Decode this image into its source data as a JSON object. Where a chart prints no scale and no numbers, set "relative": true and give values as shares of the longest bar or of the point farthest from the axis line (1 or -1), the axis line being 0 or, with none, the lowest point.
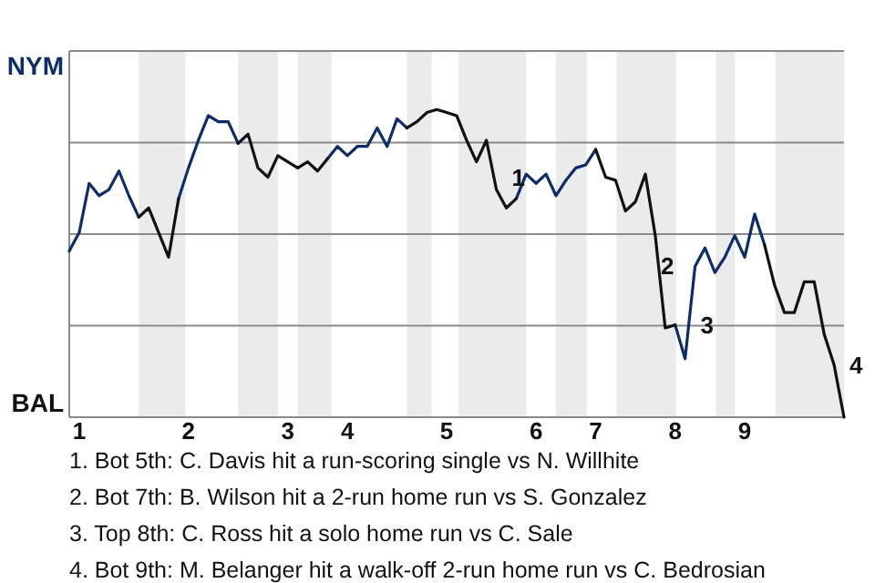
{
  "chart_data": {
    "type": "line",
    "relative": true,
    "categories": [
      null,
      "1",
      null,
      null,
      null,
      null,
      null,
      null,
      null,
      null,
      null,
      null,
      "2",
      null,
      null,
      null,
      null,
      null,
      null,
      null,
      null,
      null,
      "3",
      null,
      null,
      null,
      null,
      null,
      "4",
      null,
      null,
      null,
      null,
      null,
      null,
      null,
      null,
      null,
      "5",
      null,
      null,
      null,
      null,
      null,
      null,
      null,
      null,
      "6",
      null,
      null,
      null,
      null,
      null,
      "7",
      null,
      null,
      null,
      null,
      null,
      null,
      null,
      "8",
      null,
      null,
      null,
      null,
      null,
      null,
      "9",
      null,
      null,
      null,
      null,
      null,
      null,
      null,
      null,
      null,
      null
    ],
    "series": [
      {
        "color": "#0b2d6b",
        "values": [
          0.54,
          0.6,
          0.76,
          0.72,
          0.74,
          0.8,
          0.72,
          0.65,
          null,
          null,
          null,
          0.71,
          0.81,
          0.9,
          0.98,
          0.96,
          0.96,
          0.89,
          null,
          null,
          null,
          null,
          null,
          null,
          null,
          null,
          0.84,
          0.88,
          0.85,
          0.88,
          0.88,
          0.94,
          0.88,
          0.97,
          0.94,
          null,
          null,
          null,
          null,
          null,
          null,
          null,
          null,
          null,
          null,
          0.71,
          0.79,
          0.76,
          0.79,
          0.72,
          0.77,
          0.81,
          0.82,
          0.87,
          null,
          null,
          null,
          null,
          null,
          null,
          null,
          0.3,
          0.19,
          0.49,
          0.55,
          0.47,
          0.52,
          0.59,
          0.52,
          0.66,
          0.56,
          null,
          null,
          null,
          null,
          null,
          null,
          null,
          null
        ]
      },
      {
        "color": "#111111",
        "values": [
          null,
          null,
          null,
          null,
          null,
          null,
          null,
          0.65,
          0.68,
          0.6,
          0.52,
          0.71,
          null,
          null,
          null,
          null,
          null,
          0.89,
          0.92,
          0.81,
          0.78,
          0.85,
          0.83,
          0.81,
          0.83,
          0.8,
          0.84,
          null,
          null,
          null,
          null,
          null,
          null,
          null,
          0.94,
          0.96,
          0.99,
          1,
          0.99,
          0.98,
          0.9,
          0.83,
          0.9,
          0.74,
          0.68,
          0.71,
          null,
          null,
          null,
          null,
          null,
          null,
          null,
          0.87,
          0.78,
          0.77,
          0.67,
          0.7,
          0.79,
          0.59,
          0.29,
          0.3,
          null,
          null,
          null,
          null,
          null,
          null,
          null,
          null,
          0.56,
          0.43,
          0.34,
          0.34,
          0.44,
          0.44,
          0.27,
          0.17,
          0
        ]
      }
    ],
    "grid": "y",
    "annotations": [
      "NYM",
      "BAL",
      "1",
      "2",
      "3",
      "4",
      "1. Bot 5th: C. Davis hit a run-scoring single vs N. Willhite",
      "2. Bot 7th: B. Wilson hit a 2-run home run vs S. Gonzalez",
      "3. Top 8th: C. Ross hit a solo home run vs C. Sale",
      "4. Bot 9th: M. Belanger hit a walk-off 2-run home run vs C. Bedrosian"
    ]
  }
}
